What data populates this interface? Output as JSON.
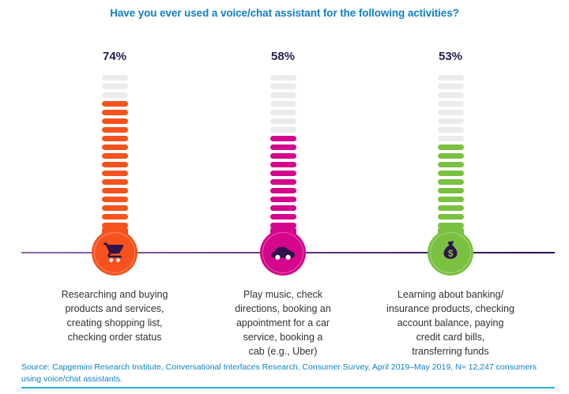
{
  "title": {
    "text": "Have you ever used a voice/chat assistant for the following activities?"
  },
  "chart_data": {
    "type": "bar",
    "title": "Have you ever used a voice/chat assistant for the following activities?",
    "unit": "%",
    "categories": [
      "Researching and buying products and services, creating shopping list, checking order status",
      "Play music, check directions, booking an appointment for a car service, booking a cab (e.g., Uber)",
      "Learning about banking/ insurance products, checking account balance, paying credit card bills, transferring funds"
    ],
    "values": [
      74,
      58,
      53
    ],
    "unfilled_color": "#ebebee",
    "baseline": {
      "color_start": "#8f6aaa",
      "color_end": "#2d0a50"
    },
    "bars": [
      {
        "value": 74,
        "value_label": "74%",
        "label": "Researching and buying\nproducts and services,\ncreating shopping list,\nchecking order status",
        "color": "#f5521d",
        "icon": "shopping-cart",
        "segments_total": 18,
        "segments_unfilled": 3
      },
      {
        "value": 58,
        "value_label": "58%",
        "label": "Play music, check\ndirections, booking an\nappointment for a car\nservice, booking a\ncab (e.g., Uber)",
        "color": "#d4068c",
        "icon": "car",
        "segments_total": 18,
        "segments_unfilled": 7
      },
      {
        "value": 53,
        "value_label": "53%",
        "label": "Learning about banking/\ninsurance products, checking\naccount balance, paying\ncredit card bills,\ntransferring funds",
        "color": "#7ac142",
        "icon": "money-bag",
        "segments_total": 18,
        "segments_unfilled": 8
      }
    ]
  },
  "source": {
    "text": "Source: Capgemini Research Institute, Conversational Interfaces Research, Consumer Survey, April 2019–May 2019, N= 12,247 consumers\nusing voice/chat assistants."
  },
  "theme": {
    "title_color": "#1180c4",
    "percent_color": "#2b1b4d",
    "label_color": "#35312f",
    "source_color": "#0f82c5",
    "rule_color": "#29abe2",
    "dark_purple": "#31124b",
    "background": "#ffffff"
  }
}
